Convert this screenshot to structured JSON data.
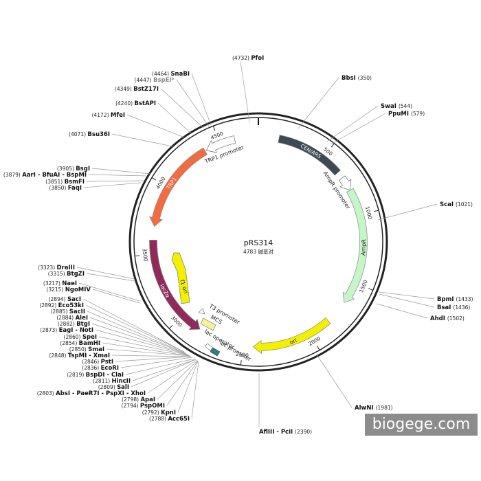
{
  "plasmid": {
    "name": "pRS314",
    "size_label": "4783 碱基对",
    "length": 4783
  },
  "watermark": "biogege.com",
  "ticks": [
    {
      "pos": 500,
      "label": "500"
    },
    {
      "pos": 1000,
      "label": "1000"
    },
    {
      "pos": 1500,
      "label": "1500"
    },
    {
      "pos": 2000,
      "label": "2000"
    },
    {
      "pos": 2500,
      "label": "2500"
    },
    {
      "pos": 3000,
      "label": "3000"
    },
    {
      "pos": 3500,
      "label": "3500"
    },
    {
      "pos": 4000,
      "label": "4000"
    },
    {
      "pos": 4500,
      "label": "4500"
    }
  ],
  "features": [
    {
      "id": "cen-ars",
      "label": "CEN/ARS",
      "start": 150,
      "end": 650,
      "dir": "none",
      "color": "#3d4a56",
      "label_inside": true
    },
    {
      "id": "ampr-promoter",
      "label": "AmpR promoter",
      "start": 700,
      "end": 805,
      "dir": "cw",
      "color": "#ffffff",
      "label_inside": false
    },
    {
      "id": "ampr",
      "label": "AmpR",
      "start": 805,
      "end": 1665,
      "dir": "cw",
      "color": "#c6f5c8",
      "label_inside": true
    },
    {
      "id": "ori",
      "label": "ori",
      "start": 1840,
      "end": 2430,
      "dir": "cw",
      "color": "#f2ef00",
      "label_inside": true
    },
    {
      "id": "laczalpha",
      "label": "lacZα",
      "start": 2840,
      "end": 3600,
      "dir": "ccw",
      "color": "#8f2a5a",
      "label_inside": true
    },
    {
      "id": "trp1",
      "label": "TRP1",
      "start": 3700,
      "end": 4380,
      "dir": "ccw",
      "color": "#f26c42",
      "label_inside": true
    },
    {
      "id": "trp1-promoter",
      "label": "TRP1 promoter",
      "start": 4390,
      "end": 4610,
      "dir": "ccw",
      "color": "#ffffff",
      "label_inside": false
    }
  ],
  "inner_features": [
    {
      "id": "f1-ori",
      "label": "f1 ori",
      "color": "#f2ef00"
    },
    {
      "id": "mcs",
      "label": "MCS",
      "color": "#f5f29a"
    },
    {
      "id": "t3-promoter",
      "label": "T3 promoter",
      "color": "#ffffff"
    },
    {
      "id": "lac-operator",
      "label": "lac operator",
      "color": "#ffffff"
    },
    {
      "id": "lac-promoter",
      "label": "lac promoter",
      "color": "#2f7c83"
    }
  ],
  "sites": [
    {
      "name": "PfoI",
      "pos": "(4732)"
    },
    {
      "name": "BbsI",
      "pos": "(350)"
    },
    {
      "name": "SwaI",
      "pos": "(544)"
    },
    {
      "name": "PpuMI",
      "pos": "(579)"
    },
    {
      "name": "ScaI",
      "pos": "(1021)"
    },
    {
      "name": "BpmI",
      "pos": "(1433)"
    },
    {
      "name": "BsaI",
      "pos": "(1436)"
    },
    {
      "name": "AhdI",
      "pos": "(1502)"
    },
    {
      "name": "AlwNI",
      "pos": "(1981)"
    },
    {
      "name": "AflIII - PciI",
      "pos": "(2390)"
    },
    {
      "name": "SnaBI",
      "pos": "(4464)"
    },
    {
      "name": "BspEI*",
      "pos": "(4447)",
      "gray": true
    },
    {
      "name": "BstZ17I",
      "pos": "(4349)"
    },
    {
      "name": "BstAPI",
      "pos": "(4240)"
    },
    {
      "name": "MfeI",
      "pos": "(4172)"
    },
    {
      "name": "Bsu36I",
      "pos": "(4071)"
    },
    {
      "name": "BsgI",
      "pos": "(3905)"
    },
    {
      "name": "AarI - BfuAI - BspMI",
      "pos": "(3879)"
    },
    {
      "name": "BsmFI",
      "pos": "(3851)"
    },
    {
      "name": "FaqI",
      "pos": "(3850)"
    },
    {
      "name": "DraIII",
      "pos": "(3323)"
    },
    {
      "name": "BtgZI",
      "pos": "(3315)"
    },
    {
      "name": "NaeI",
      "pos": "(3217)"
    },
    {
      "name": "NgoMIV",
      "pos": "(3215)"
    },
    {
      "name": "SacI",
      "pos": "(2894)"
    },
    {
      "name": "Eco53kI",
      "pos": "(2892)"
    },
    {
      "name": "SacII",
      "pos": "(2885)"
    },
    {
      "name": "AleI",
      "pos": "(2884)"
    },
    {
      "name": "BtgI",
      "pos": "(2882)"
    },
    {
      "name": "EagI - NotI",
      "pos": "(2873)"
    },
    {
      "name": "SpeI",
      "pos": "(2860)"
    },
    {
      "name": "BamHI",
      "pos": "(2854)"
    },
    {
      "name": "SmaI",
      "pos": "(2850)"
    },
    {
      "name": "TspMI - XmaI",
      "pos": "(2848)"
    },
    {
      "name": "PstI",
      "pos": "(2846)"
    },
    {
      "name": "EcoRI",
      "pos": "(2836)"
    },
    {
      "name": "BspDI - ClaI",
      "pos": "(2819)"
    },
    {
      "name": "HincII",
      "pos": "(2811)"
    },
    {
      "name": "SalI",
      "pos": "(2809)"
    },
    {
      "name": "AbsI - PaeR7I - PspXI - XhoI",
      "pos": "(2803)"
    },
    {
      "name": "ApaI",
      "pos": "(2798)"
    },
    {
      "name": "PspOMI",
      "pos": "(2794)"
    },
    {
      "name": "KpnI",
      "pos": "(2792)"
    },
    {
      "name": "Acc65I",
      "pos": "(2788)"
    }
  ]
}
